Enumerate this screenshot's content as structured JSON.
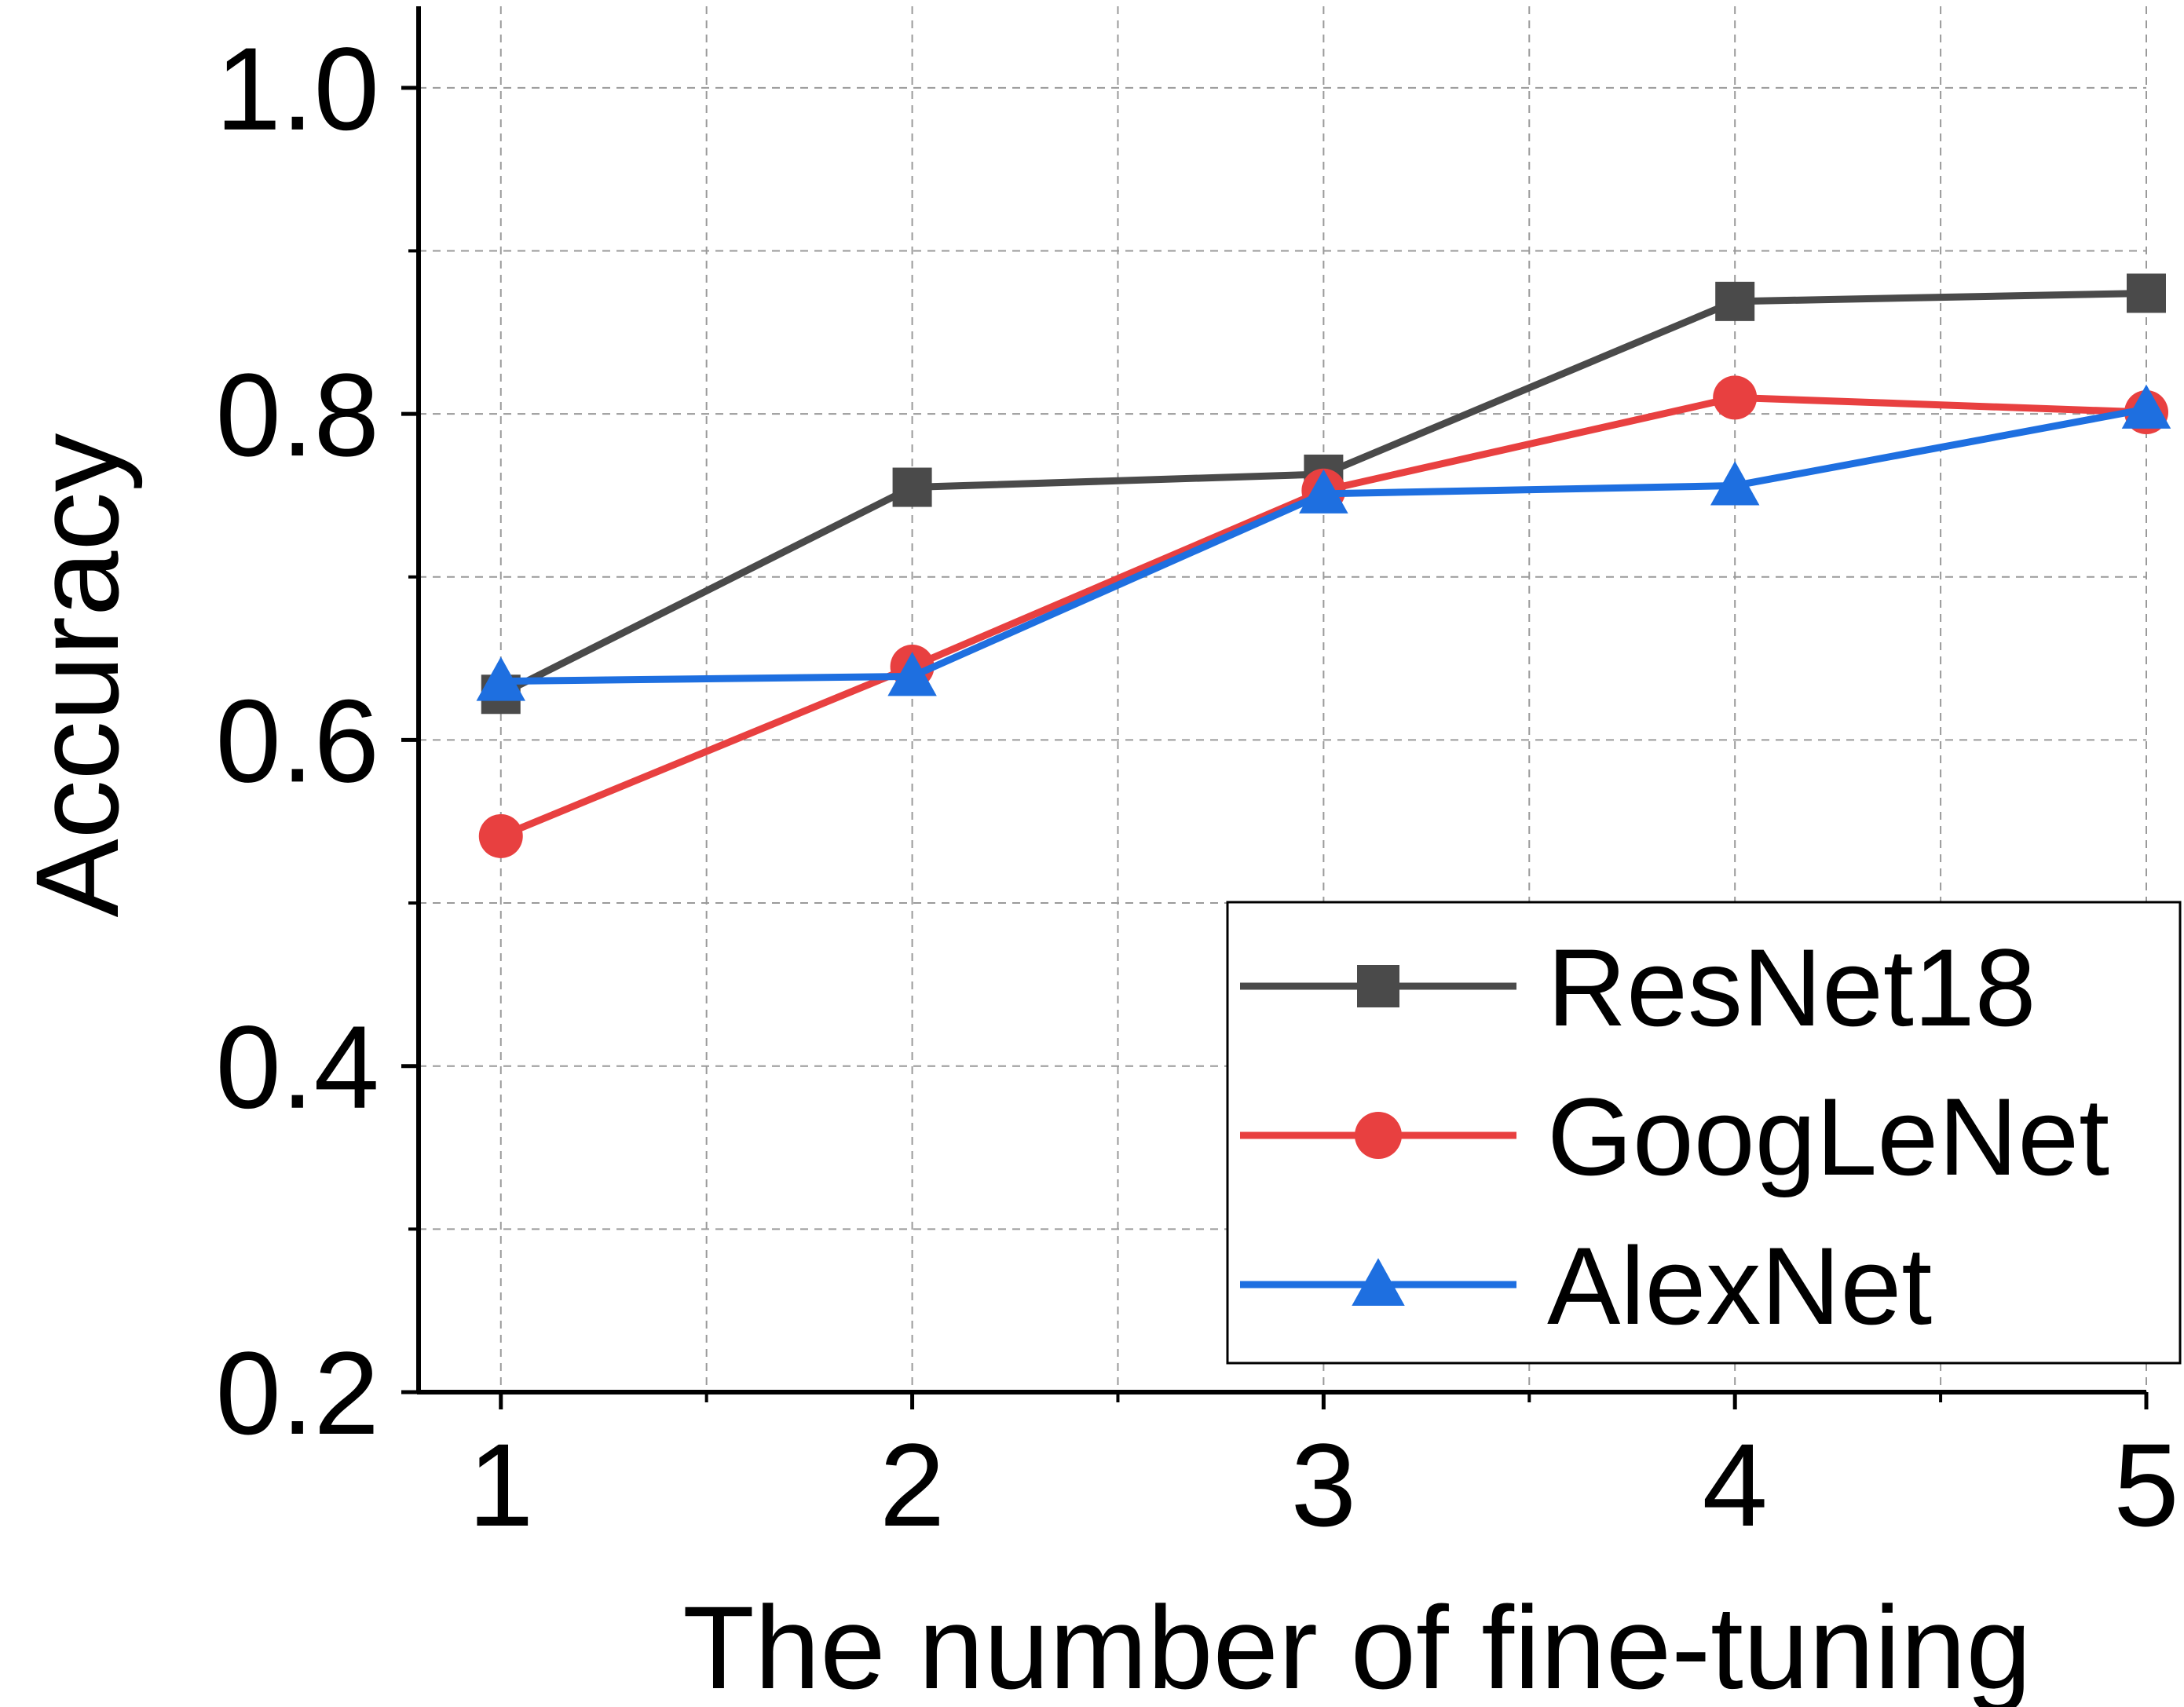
{
  "chart_data": {
    "type": "line",
    "xlabel": "The number of fine-tuning",
    "ylabel": "Accuracy",
    "x": [
      1,
      2,
      3,
      4,
      5
    ],
    "xlim": [
      0.8,
      5.0
    ],
    "ylim": [
      0.2,
      1.05
    ],
    "x_ticks": [
      "1",
      "2",
      "3",
      "4",
      "5"
    ],
    "y_ticks": [
      "0.2",
      "0.4",
      "0.6",
      "0.8",
      "1.0"
    ],
    "grid": true,
    "legend_position": "bottom-right",
    "series": [
      {
        "name": "ResNet18",
        "values": [
          0.628,
          0.755,
          0.763,
          0.869,
          0.874
        ],
        "color": "#4a4a4a",
        "marker": "square"
      },
      {
        "name": "GoogLeNet",
        "values": [
          0.541,
          0.645,
          0.753,
          0.81,
          0.801
        ],
        "color": "#e84040",
        "marker": "circle"
      },
      {
        "name": "AlexNet",
        "values": [
          0.636,
          0.639,
          0.751,
          0.756,
          0.803
        ],
        "color": "#1e6fe0",
        "marker": "triangle"
      }
    ]
  }
}
